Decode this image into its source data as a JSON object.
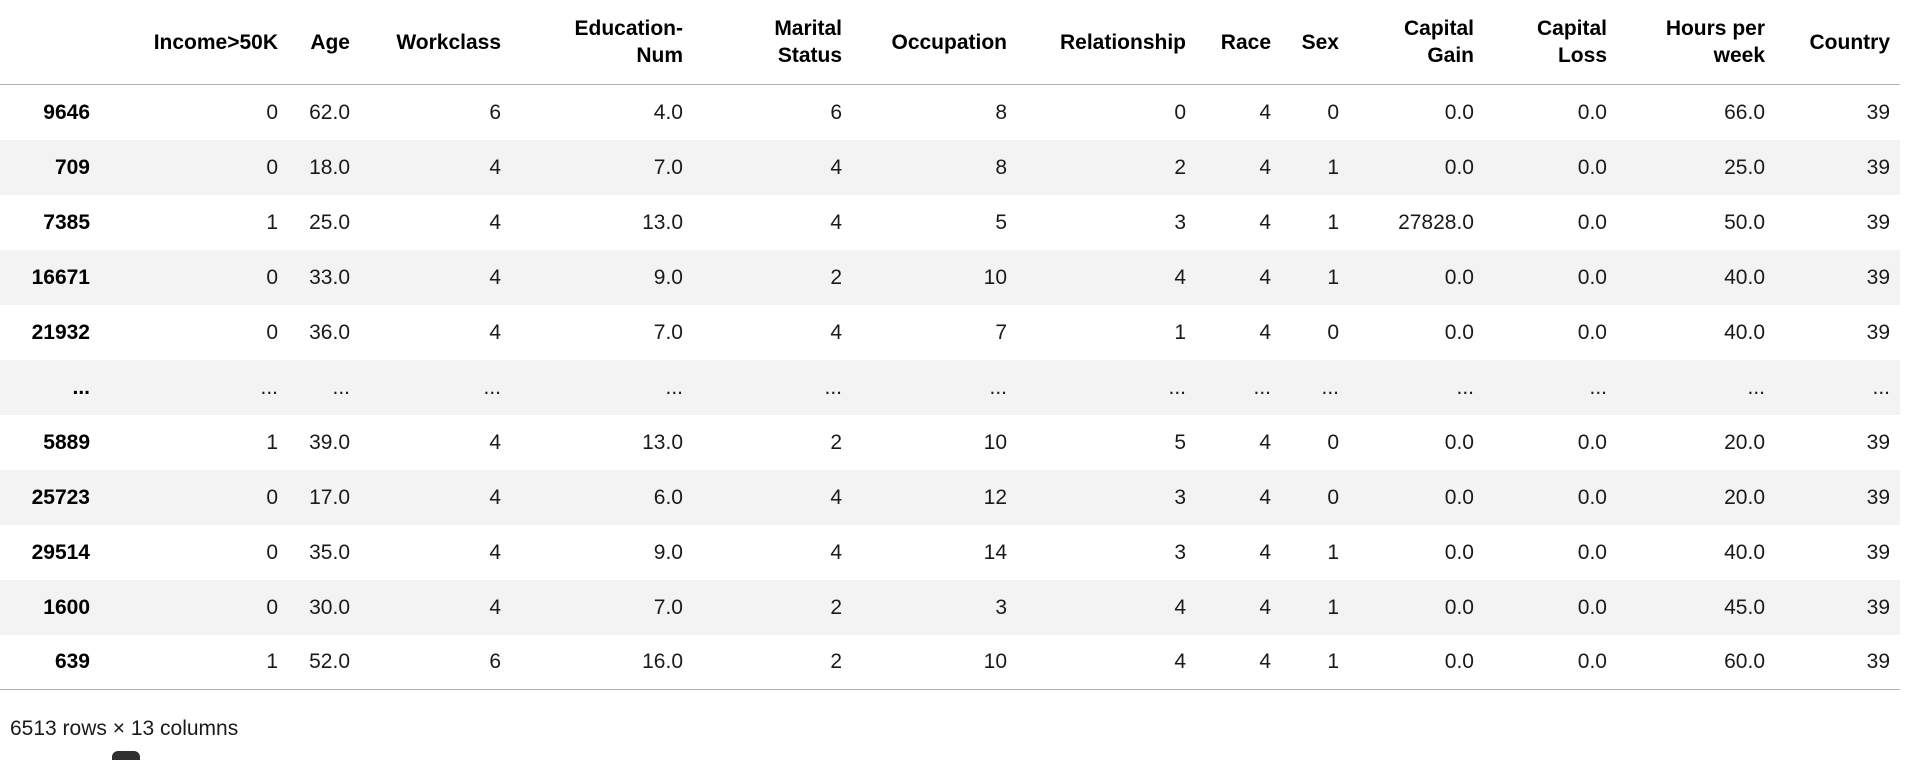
{
  "table": {
    "columns": [
      "Income>50K",
      "Age",
      "Workclass",
      "Education-\nNum",
      "Marital\nStatus",
      "Occupation",
      "Relationship",
      "Race",
      "Sex",
      "Capital\nGain",
      "Capital\nLoss",
      "Hours per\nweek",
      "Country"
    ],
    "rows": [
      {
        "index": "9646",
        "values": [
          "0",
          "62.0",
          "6",
          "4.0",
          "6",
          "8",
          "0",
          "4",
          "0",
          "0.0",
          "0.0",
          "66.0",
          "39"
        ]
      },
      {
        "index": "709",
        "values": [
          "0",
          "18.0",
          "4",
          "7.0",
          "4",
          "8",
          "2",
          "4",
          "1",
          "0.0",
          "0.0",
          "25.0",
          "39"
        ]
      },
      {
        "index": "7385",
        "values": [
          "1",
          "25.0",
          "4",
          "13.0",
          "4",
          "5",
          "3",
          "4",
          "1",
          "27828.0",
          "0.0",
          "50.0",
          "39"
        ]
      },
      {
        "index": "16671",
        "values": [
          "0",
          "33.0",
          "4",
          "9.0",
          "2",
          "10",
          "4",
          "4",
          "1",
          "0.0",
          "0.0",
          "40.0",
          "39"
        ]
      },
      {
        "index": "21932",
        "values": [
          "0",
          "36.0",
          "4",
          "7.0",
          "4",
          "7",
          "1",
          "4",
          "0",
          "0.0",
          "0.0",
          "40.0",
          "39"
        ]
      },
      {
        "index": "...",
        "values": [
          "...",
          "...",
          "...",
          "...",
          "...",
          "...",
          "...",
          "...",
          "...",
          "...",
          "...",
          "...",
          "..."
        ]
      },
      {
        "index": "5889",
        "values": [
          "1",
          "39.0",
          "4",
          "13.0",
          "2",
          "10",
          "5",
          "4",
          "0",
          "0.0",
          "0.0",
          "20.0",
          "39"
        ]
      },
      {
        "index": "25723",
        "values": [
          "0",
          "17.0",
          "4",
          "6.0",
          "4",
          "12",
          "3",
          "4",
          "0",
          "0.0",
          "0.0",
          "20.0",
          "39"
        ]
      },
      {
        "index": "29514",
        "values": [
          "0",
          "35.0",
          "4",
          "9.0",
          "4",
          "14",
          "3",
          "4",
          "1",
          "0.0",
          "0.0",
          "40.0",
          "39"
        ]
      },
      {
        "index": "1600",
        "values": [
          "0",
          "30.0",
          "4",
          "7.0",
          "2",
          "3",
          "4",
          "4",
          "1",
          "0.0",
          "0.0",
          "45.0",
          "39"
        ]
      },
      {
        "index": "639",
        "values": [
          "1",
          "52.0",
          "6",
          "16.0",
          "2",
          "10",
          "4",
          "4",
          "1",
          "0.0",
          "0.0",
          "60.0",
          "39"
        ]
      }
    ],
    "footer": "6513 rows × 13 columns",
    "colors": {
      "stripe": "#f3f3f3",
      "border": "#b0b0b0",
      "text": "#1a1a1a"
    }
  }
}
